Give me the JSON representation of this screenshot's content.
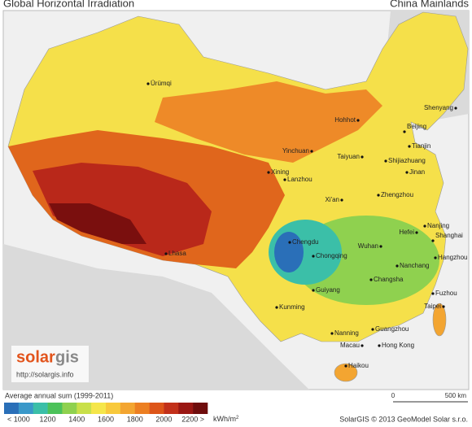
{
  "header": {
    "title": "Global Horizontal Irradiation",
    "region": "China Mainlands"
  },
  "cities": [
    "Ürümqi",
    "Hohhot",
    "Shenyang",
    "Beijing",
    "Tianjin",
    "Yinchuan",
    "Taiyuan",
    "Shijiazhuang",
    "Jinan",
    "Xining",
    "Lanzhou",
    "Xi'an",
    "Zhengzhou",
    "Nanjing",
    "Hefei",
    "Shanghai",
    "Chengdu",
    "Chongqing",
    "Wuhan",
    "Hangzhou",
    "Lhasa",
    "Nanchang",
    "Changsha",
    "Guiyang",
    "Fuzhou",
    "Kunming",
    "Taipei",
    "Guangzhou",
    "Nanning",
    "Macau",
    "Hong Kong",
    "Haikou"
  ],
  "legend": {
    "title": "Average annual sum (1999-2011)",
    "ticks": [
      "< 1000",
      "1200",
      "1400",
      "1600",
      "1800",
      "2000",
      "2200 >"
    ],
    "unit": "kWh/m",
    "unit_sup": "2",
    "colors": [
      "#2a6fb8",
      "#3a98c9",
      "#3bbfa8",
      "#4cc25a",
      "#8fd14f",
      "#c9e04a",
      "#f5e64a",
      "#f8c93c",
      "#f3a531",
      "#ec7f22",
      "#dd5519",
      "#c2301a",
      "#9a1713",
      "#6e0c0c"
    ]
  },
  "scale_bar": {
    "start": "0",
    "end": "500 km"
  },
  "logo": {
    "brand_a": "solar",
    "brand_b": "gis",
    "url": "http://solargis.info"
  },
  "credit": "SolarGIS © 2013 GeoModel Solar s.r.o."
}
